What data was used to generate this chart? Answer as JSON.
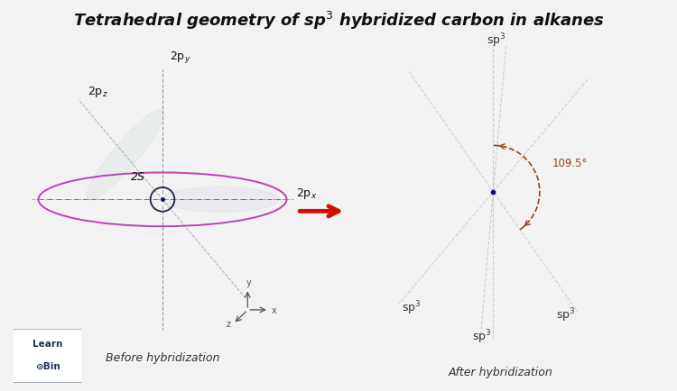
{
  "title": "Tetrahedral geometry of sp³ hybridized carbon in alkanes",
  "title_fontsize": 13,
  "bg_color": "#f2f2f2",
  "panel_bg": "#ffffff",
  "before_label": "Before hybridization",
  "after_label": "After hybridization",
  "arrow_color": "#cc1100",
  "orbital_color_s": "#bb44bb",
  "orbital_color_py": "#222244",
  "orbital_color_pz": "#007755",
  "orbital_color_px": "#2244aa",
  "sp3_color": "#1a1a6e",
  "dashed_color": "#aaaaaa",
  "axis_color": "#888888",
  "label_color": "#111111",
  "angle_label": "109.5°",
  "angle_color": "#994422",
  "center_color": "#001177"
}
